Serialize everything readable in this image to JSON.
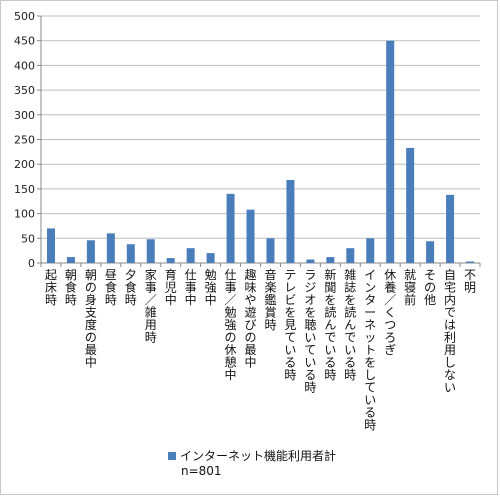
{
  "chart_data": {
    "type": "bar",
    "categories": [
      "起床時",
      "朝食時",
      "朝の身支度の最中",
      "昼食時",
      "夕食時",
      "家事／雑用時",
      "育児中",
      "仕事中",
      "勉強中",
      "仕事／勉強の休憩中",
      "趣味や遊びの最中",
      "音楽鑑賞時",
      "テレビを見ている時",
      "ラジオを聴いている時",
      "新聞を読んでいる時",
      "雑誌を読んでいる時",
      "インターネットをしている時",
      "休養／くつろぎ",
      "就寝前",
      "その他",
      "自宅内では利用しない",
      "不明"
    ],
    "series": [
      {
        "name": "インターネット機能利用者計",
        "values": [
          70,
          12,
          46,
          60,
          38,
          48,
          10,
          30,
          20,
          140,
          108,
          50,
          168,
          7,
          12,
          30,
          50,
          450,
          233,
          44,
          138,
          3
        ]
      }
    ],
    "ylim": [
      0,
      500
    ],
    "yticks": [
      0,
      50,
      100,
      150,
      200,
      250,
      300,
      350,
      400,
      450,
      500
    ],
    "grid": true,
    "legend": "bottom",
    "bar_color": "#4a7ebb"
  },
  "note": "n=801"
}
